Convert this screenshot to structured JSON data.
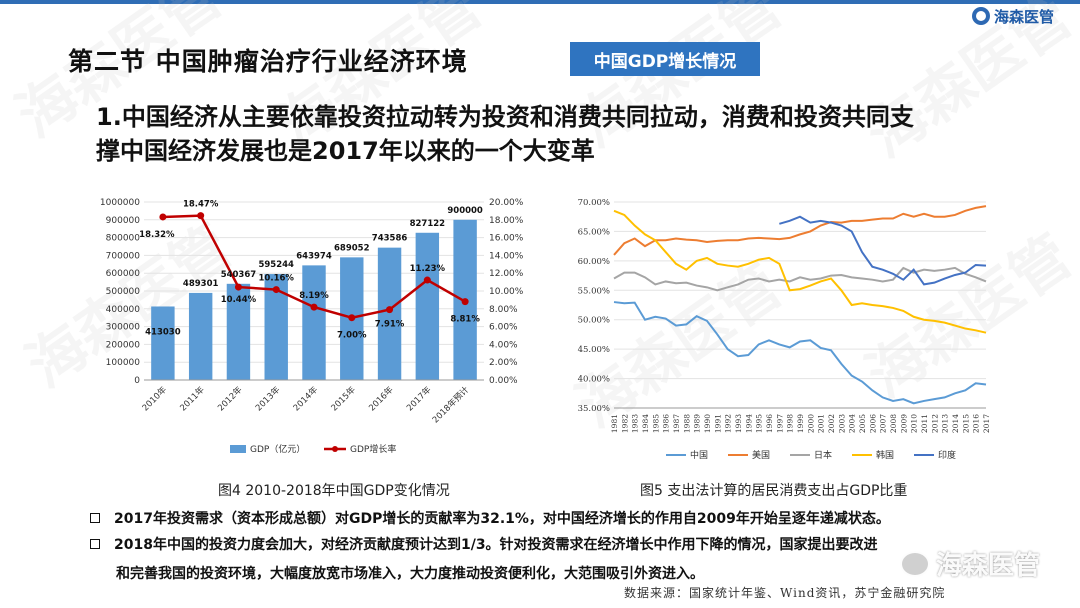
{
  "brand": {
    "name": "海森医管"
  },
  "section_title": "第二节 中国肿瘤治疗行业经济环境",
  "tag": "中国GDP增长情况",
  "headline": {
    "line1": "1.中国经济从主要依靠投资拉动转为投资和消费共同拉动，消费和投资共同支",
    "line2": "撑中国经济发展也是2017年以来的一个大变革"
  },
  "watermark_text": "海森医管",
  "colors": {
    "bar": "#5b9bd5",
    "line": "#c00000",
    "tag": "#2f74c0",
    "china": "#5b9bd5",
    "usa": "#ed7d31",
    "japan": "#a5a5a5",
    "korea": "#ffc000",
    "india": "#4472c4"
  },
  "chart_data": [
    {
      "type": "bar",
      "categories": [
        "2010年",
        "2011年",
        "2012年",
        "2013年",
        "2014年",
        "2015年",
        "2016年",
        "2017年",
        "2018年预计"
      ],
      "series": [
        {
          "name": "GDP（亿元）",
          "values": [
            413030,
            489301,
            540367,
            595244,
            643974,
            689052,
            743586,
            827122,
            900000
          ],
          "labels": [
            "413030",
            "489301",
            "540367",
            "595244",
            "643974",
            "689052",
            "743586",
            "827122",
            "900000"
          ]
        },
        {
          "name": "GDP增长率",
          "type": "line",
          "values": [
            18.32,
            18.47,
            10.44,
            10.16,
            8.19,
            7.0,
            7.91,
            11.23,
            8.81
          ],
          "labels": [
            "18.32%",
            "18.47%",
            "10.44%",
            "10.16%",
            "8.19%",
            "7.00%",
            "7.91%",
            "11.23%",
            "8.81%"
          ]
        }
      ],
      "y_ticks": [
        "0",
        "100000",
        "200000",
        "300000",
        "400000",
        "500000",
        "600000",
        "700000",
        "800000",
        "900000",
        "1000000"
      ],
      "y2_ticks": [
        "0.00%",
        "2.00%",
        "4.00%",
        "6.00%",
        "8.00%",
        "10.00%",
        "12.00%",
        "14.00%",
        "16.00%",
        "18.00%",
        "20.00%"
      ],
      "ylim": [
        0,
        1000000
      ],
      "y2lim": [
        0,
        20
      ],
      "legend_position": "bottom",
      "caption": "图4 2010-2018年中国GDP变化情况"
    },
    {
      "type": "line",
      "x": [
        "1981",
        "1982",
        "1983",
        "1984",
        "1985",
        "1986",
        "1987",
        "1988",
        "1989",
        "1990",
        "1991",
        "1992",
        "1993",
        "1994",
        "1995",
        "1996",
        "1997",
        "1998",
        "1999",
        "2000",
        "2001",
        "2002",
        "2003",
        "2004",
        "2005",
        "2006",
        "2007",
        "2008",
        "2009",
        "2010",
        "2011",
        "2012",
        "2013",
        "2014",
        "2015",
        "2016",
        "2017"
      ],
      "series": [
        {
          "name": "中国",
          "values": [
            53.0,
            52.8,
            52.9,
            50.0,
            50.5,
            50.2,
            49.0,
            49.2,
            50.6,
            49.8,
            47.5,
            45.0,
            43.8,
            44.0,
            45.8,
            46.5,
            45.8,
            45.3,
            46.3,
            46.5,
            45.2,
            44.8,
            42.5,
            40.5,
            39.5,
            38.0,
            36.8,
            36.2,
            36.5,
            35.8,
            36.2,
            36.5,
            36.8,
            37.5,
            38.0,
            39.2,
            39.0
          ]
        },
        {
          "name": "美国",
          "values": [
            61.0,
            63.0,
            63.8,
            62.5,
            63.5,
            63.5,
            63.8,
            63.6,
            63.5,
            63.2,
            63.4,
            63.5,
            63.5,
            63.8,
            63.9,
            63.8,
            63.7,
            63.9,
            64.5,
            65.0,
            66.0,
            66.6,
            66.5,
            66.8,
            66.8,
            67.0,
            67.2,
            67.2,
            68.0,
            67.5,
            68.0,
            67.5,
            67.5,
            67.8,
            68.5,
            69.0,
            69.3
          ]
        },
        {
          "name": "日本",
          "values": [
            57.0,
            58.0,
            58.0,
            57.2,
            56.0,
            56.5,
            56.2,
            56.3,
            55.8,
            55.5,
            55.0,
            55.5,
            56.0,
            56.8,
            57.0,
            56.5,
            56.8,
            56.5,
            57.2,
            56.8,
            57.0,
            57.5,
            57.6,
            57.2,
            57.0,
            56.8,
            56.5,
            56.8,
            58.8,
            58.0,
            58.5,
            58.3,
            58.5,
            58.8,
            57.8,
            57.2,
            56.5
          ]
        },
        {
          "name": "韩国",
          "values": [
            68.5,
            67.8,
            66.0,
            64.5,
            63.5,
            61.5,
            59.5,
            58.5,
            60.0,
            60.5,
            59.5,
            59.2,
            59.0,
            59.5,
            60.2,
            60.5,
            59.5,
            55.0,
            55.2,
            55.8,
            56.5,
            57.0,
            55.0,
            52.5,
            52.8,
            52.5,
            52.3,
            52.0,
            51.5,
            50.5,
            50.0,
            49.8,
            49.5,
            49.0,
            48.5,
            48.2,
            47.8
          ]
        },
        {
          "name": "印度",
          "values": [
            null,
            null,
            null,
            null,
            null,
            null,
            null,
            null,
            null,
            null,
            null,
            null,
            null,
            null,
            null,
            null,
            66.3,
            66.8,
            67.5,
            66.5,
            66.8,
            66.5,
            66.0,
            65.0,
            61.5,
            59.0,
            58.5,
            57.8,
            56.8,
            58.5,
            56.0,
            56.3,
            57.0,
            57.6,
            58.0,
            59.3,
            59.2
          ]
        }
      ],
      "y_ticks": [
        "35.00%",
        "40.00%",
        "45.00%",
        "50.00%",
        "55.00%",
        "60.00%",
        "65.00%",
        "70.00%"
      ],
      "ylim": [
        35,
        70
      ],
      "legend_position": "bottom",
      "caption": "图5 支出法计算的居民消费支出占GDP比重"
    }
  ],
  "bullets": [
    "2017年投资需求（资本形成总额）对GDP增长的贡献率为32.1%，对中国经济增长的作用自2009年开始呈逐年递减状态。",
    "2018年中国的投资力度会加大，对经济贡献度预计达到1/3。针对投资需求在经济增长中作用下降的情况，国家提出要改进"
  ],
  "bullet2_cont": "和完善我国的投资环境，大幅度放宽市场准入，大力度推动投资便利化，大范围吸引外资进入。",
  "source": "数据来源：国家统计年鉴、Wind资讯，苏宁金融研究院",
  "wechat": {
    "label": "海森医管"
  }
}
